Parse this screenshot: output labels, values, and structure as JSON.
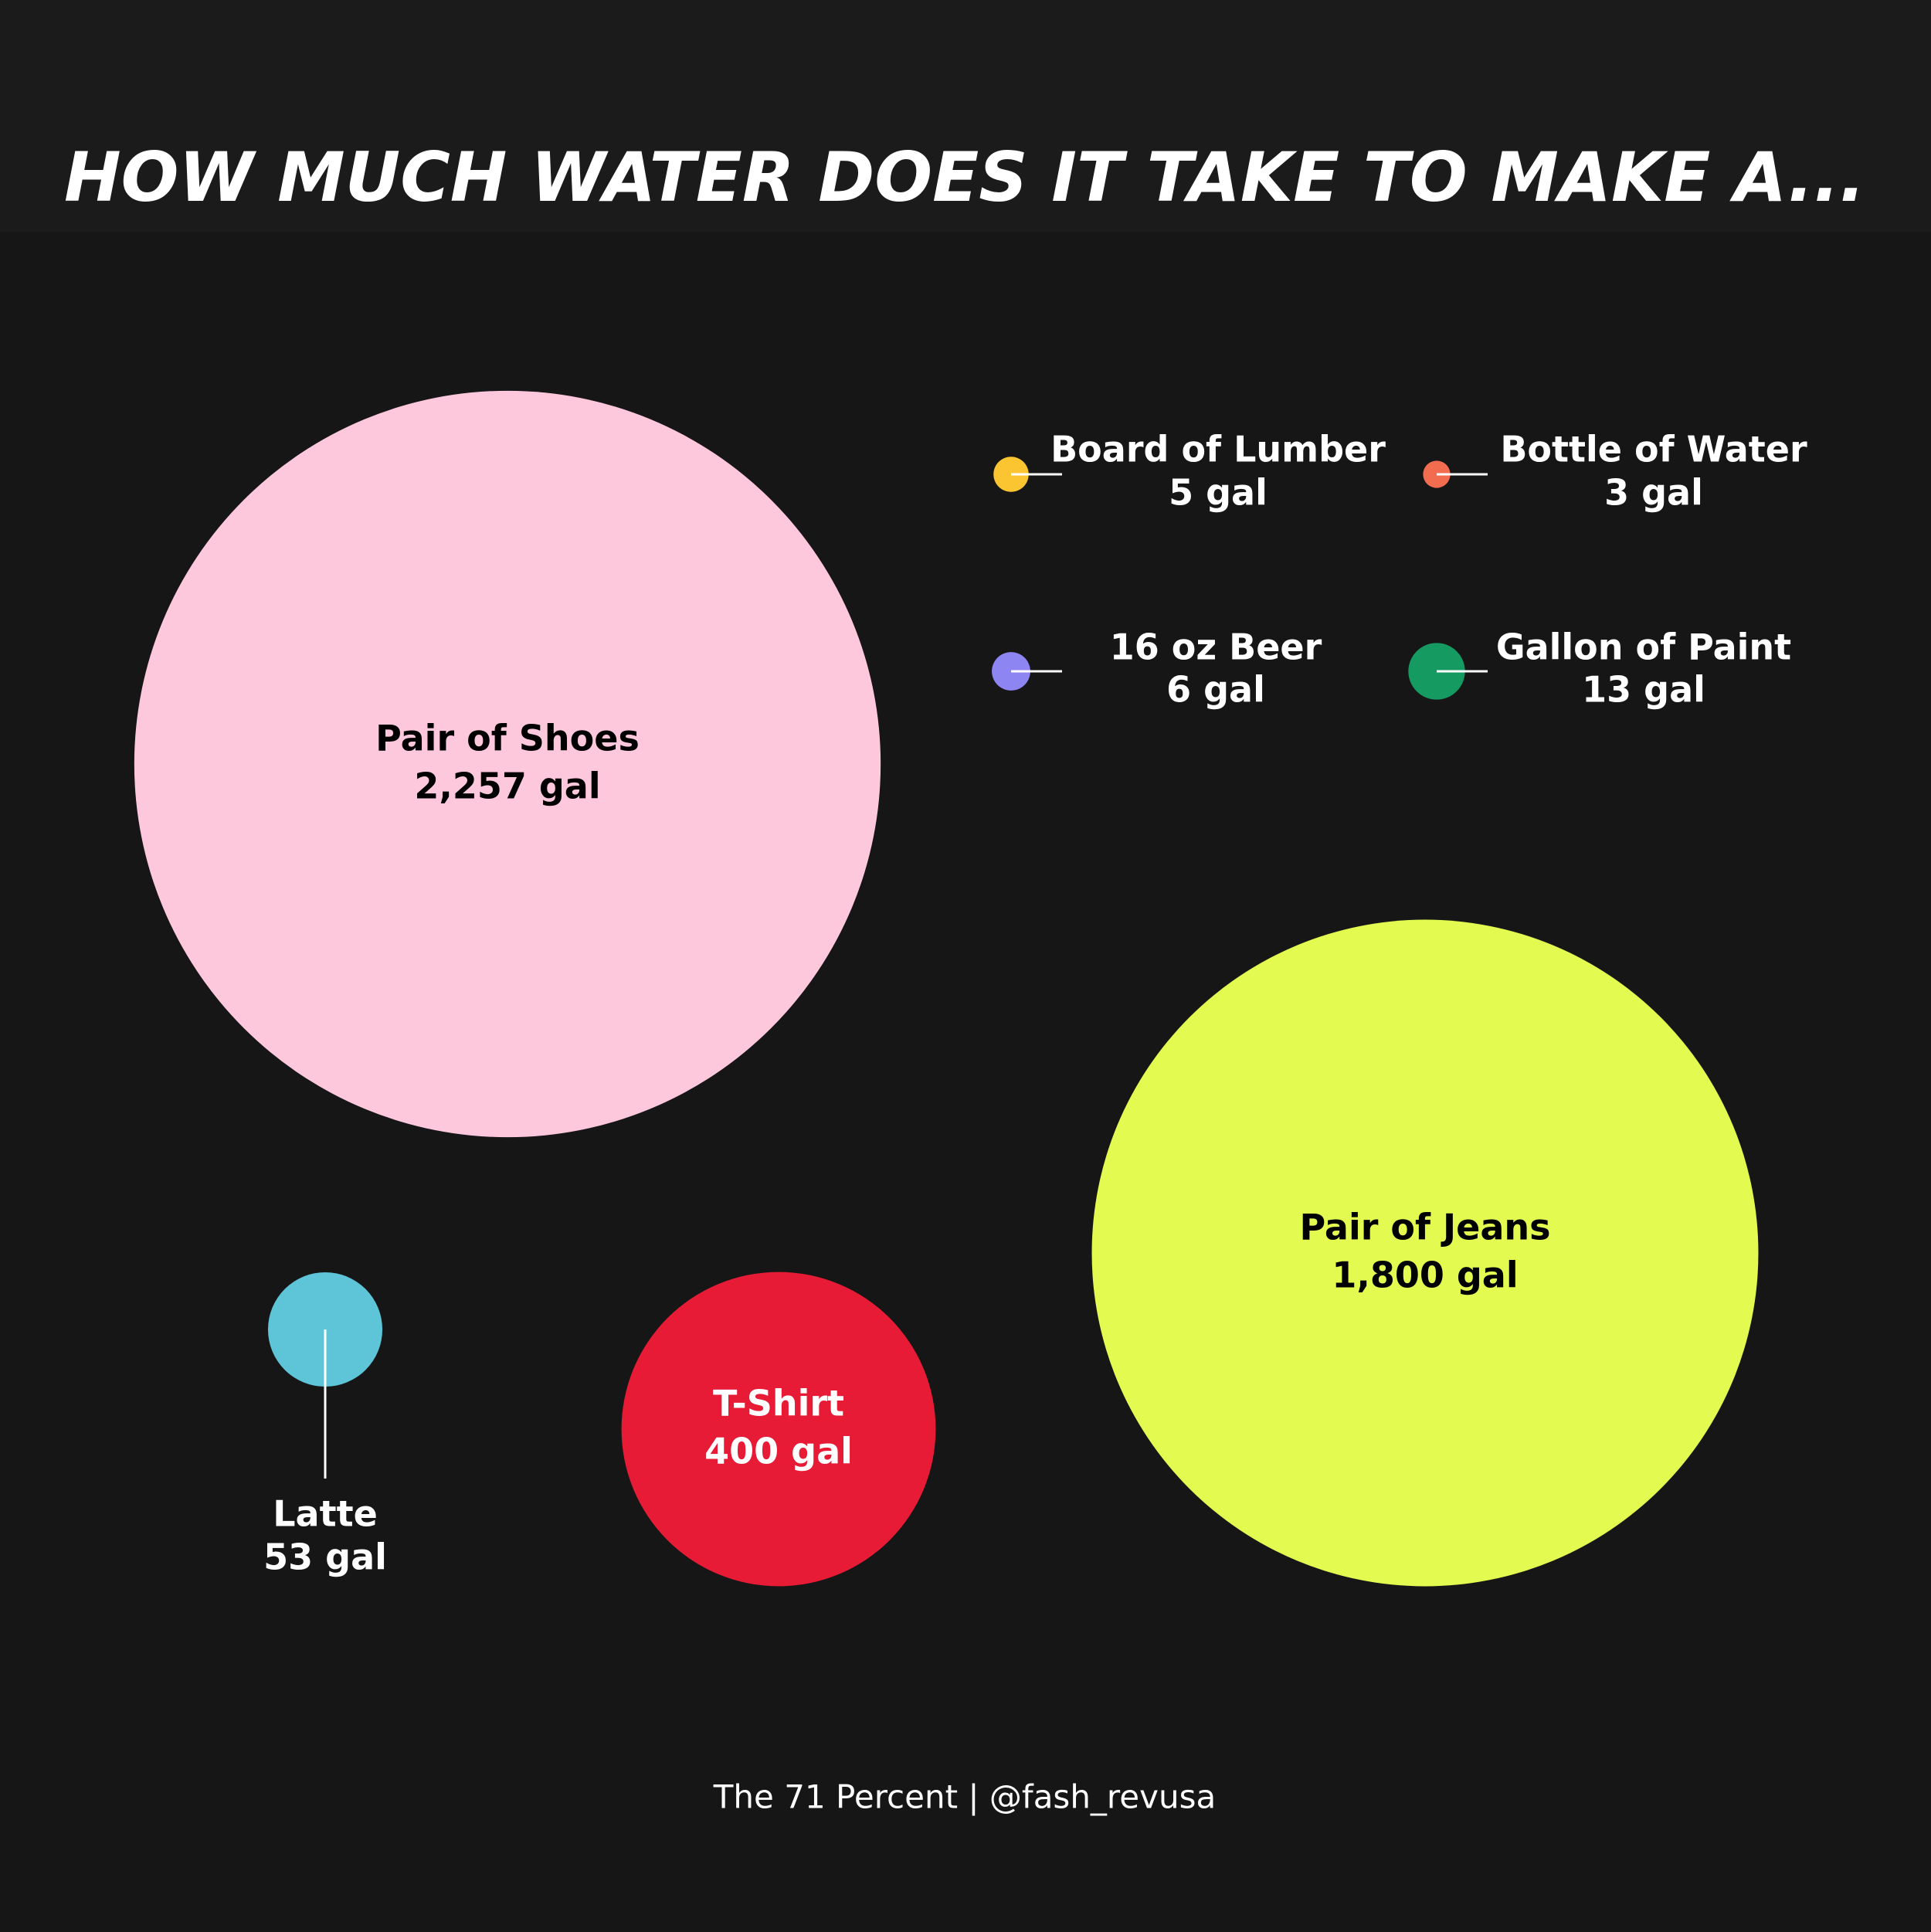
{
  "chart_data": {
    "type": "bubble",
    "title": "HOW MUCH WATER DOES IT TAKE TO MAKE A...",
    "categories": [
      "Pair of Shoes",
      "Pair of Jeans",
      "T-Shirt",
      "Latte",
      "Board of Lumber",
      "Bottle of Water",
      "16 oz Beer",
      "Gallon of Paint"
    ],
    "values": [
      2257,
      1800,
      400,
      53,
      5,
      3,
      6,
      13
    ],
    "value_labels": [
      "2,257 gal",
      "1,800 gal",
      "400 gal",
      "53 gal",
      "5 gal",
      "3 gal",
      "6 gal",
      "13 gal"
    ],
    "colors": [
      "#fec8dc",
      "#e3fa50",
      "#e81b36",
      "#5ec4d8",
      "#fbc531",
      "#f26d50",
      "#8d86f2",
      "#159b62"
    ],
    "footer": "The 71 Percent | @fash_revusa"
  }
}
